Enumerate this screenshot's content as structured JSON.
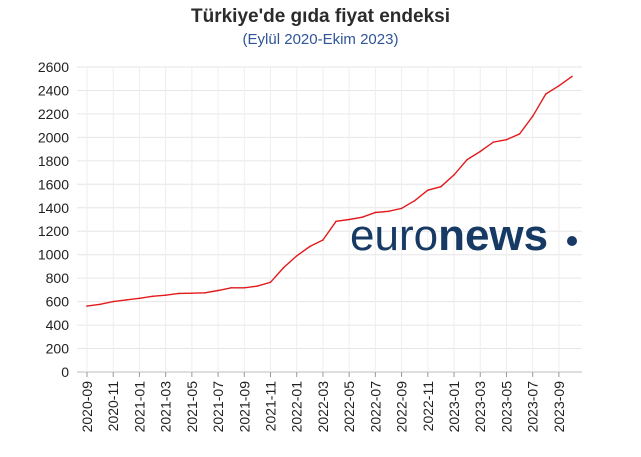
{
  "chart_data": {
    "type": "line",
    "title": "Türkiye'de gıda fiyat endeksi",
    "subtitle": "(Eylül 2020-Ekim 2023)",
    "xlabel": "",
    "ylabel": "",
    "ylim": [
      0,
      2600
    ],
    "yticks": [
      0,
      200,
      400,
      600,
      800,
      1000,
      1200,
      1400,
      1600,
      1800,
      2000,
      2200,
      2400,
      2600
    ],
    "grid": true,
    "legend": "none",
    "line_color": "#e31a1c",
    "x_tick_labels": [
      "2020-09",
      "2020-11",
      "2021-01",
      "2021-03",
      "2021-05",
      "2021-07",
      "2021-09",
      "2021-11",
      "2022-01",
      "2022-03",
      "2022-05",
      "2022-07",
      "2022-09",
      "2022-11",
      "2023-01",
      "2023-03",
      "2023-05",
      "2023-07",
      "2023-09"
    ],
    "x": [
      "2020-09",
      "2020-10",
      "2020-11",
      "2020-12",
      "2021-01",
      "2021-02",
      "2021-03",
      "2021-04",
      "2021-05",
      "2021-06",
      "2021-07",
      "2021-08",
      "2021-09",
      "2021-10",
      "2021-11",
      "2021-12",
      "2022-01",
      "2022-02",
      "2022-03",
      "2022-04",
      "2022-05",
      "2022-06",
      "2022-07",
      "2022-08",
      "2022-09",
      "2022-10",
      "2022-11",
      "2022-12",
      "2023-01",
      "2023-02",
      "2023-03",
      "2023-04",
      "2023-05",
      "2023-06",
      "2023-07",
      "2023-08",
      "2023-09",
      "2023-10"
    ],
    "series": [
      {
        "values": [
          562,
          577,
          600,
          615,
          628,
          645,
          655,
          670,
          672,
          675,
          695,
          718,
          718,
          732,
          765,
          890,
          990,
          1070,
          1125,
          1285,
          1300,
          1320,
          1360,
          1370,
          1395,
          1460,
          1550,
          1580,
          1680,
          1810,
          1880,
          1960,
          1980,
          2030,
          2180,
          2370,
          2440,
          2520
        ]
      }
    ]
  },
  "watermark": {
    "text_light": "euro",
    "text_bold": "news",
    "color": "#173a64"
  }
}
